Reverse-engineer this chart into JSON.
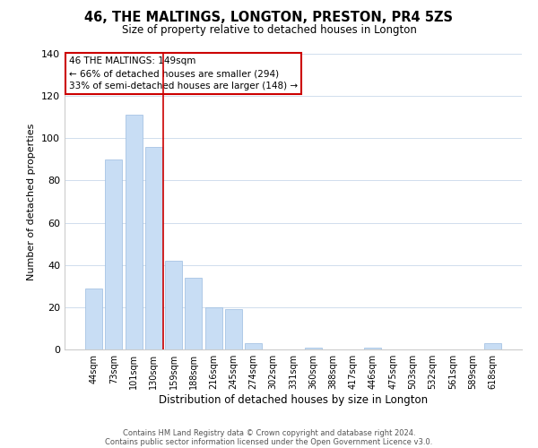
{
  "title": "46, THE MALTINGS, LONGTON, PRESTON, PR4 5ZS",
  "subtitle": "Size of property relative to detached houses in Longton",
  "xlabel": "Distribution of detached houses by size in Longton",
  "ylabel": "Number of detached properties",
  "bar_color": "#c8ddf4",
  "bar_edge_color": "#9bbce0",
  "background_color": "#ffffff",
  "grid_color": "#d0dded",
  "categories": [
    "44sqm",
    "73sqm",
    "101sqm",
    "130sqm",
    "159sqm",
    "188sqm",
    "216sqm",
    "245sqm",
    "274sqm",
    "302sqm",
    "331sqm",
    "360sqm",
    "388sqm",
    "417sqm",
    "446sqm",
    "475sqm",
    "503sqm",
    "532sqm",
    "561sqm",
    "589sqm",
    "618sqm"
  ],
  "values": [
    29,
    90,
    111,
    96,
    42,
    34,
    20,
    19,
    3,
    0,
    0,
    1,
    0,
    0,
    1,
    0,
    0,
    0,
    0,
    0,
    3
  ],
  "ylim": [
    0,
    140
  ],
  "yticks": [
    0,
    20,
    40,
    60,
    80,
    100,
    120,
    140
  ],
  "red_line_index": 3.5,
  "annotation_title": "46 THE MALTINGS: 149sqm",
  "annotation_line1": "← 66% of detached houses are smaller (294)",
  "annotation_line2": "33% of semi-detached houses are larger (148) →",
  "annotation_box_color": "#ffffff",
  "annotation_box_edge": "#cc0000",
  "red_line_color": "#cc0000",
  "footer1": "Contains HM Land Registry data © Crown copyright and database right 2024.",
  "footer2": "Contains public sector information licensed under the Open Government Licence v3.0."
}
